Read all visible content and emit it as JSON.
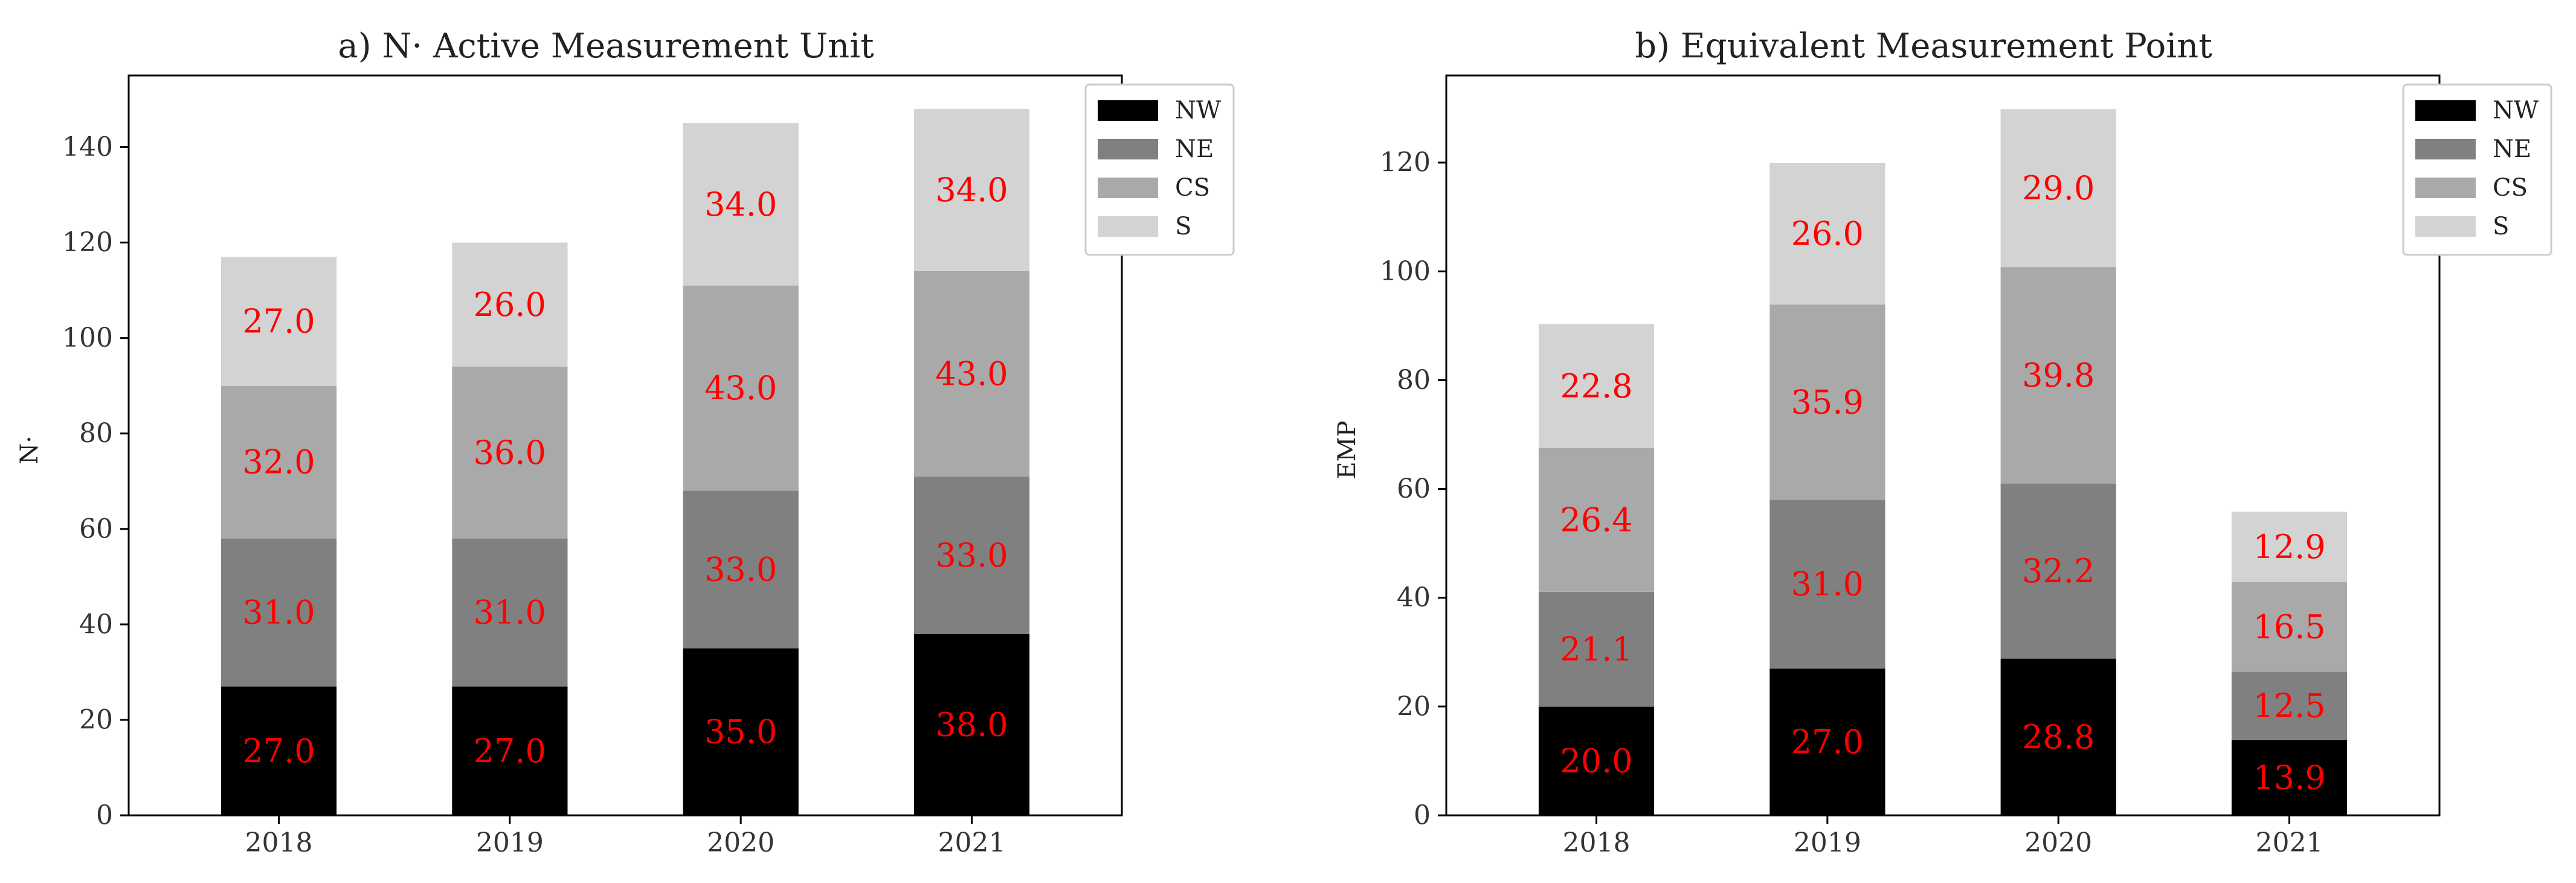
{
  "legend": {
    "placement": "top-right",
    "entries": [
      {
        "label": "NW",
        "color": "#000000"
      },
      {
        "label": "NE",
        "color": "#808080"
      },
      {
        "label": "CS",
        "color": "#a9a9a9"
      },
      {
        "label": "S",
        "color": "#d3d3d3"
      }
    ]
  },
  "chart_data": [
    {
      "type": "bar",
      "stacked": true,
      "title": "a) N· Active Measurement Unit",
      "xlabel": "",
      "ylabel": "N·",
      "categories": [
        "2018",
        "2019",
        "2020",
        "2021"
      ],
      "ylim": [
        0,
        155
      ],
      "yticks": [
        0,
        20,
        40,
        60,
        80,
        100,
        120,
        140
      ],
      "ytick_labels": [
        "0",
        "20",
        "40",
        "60",
        "80",
        "100",
        "120",
        "140"
      ],
      "grid": false,
      "series": [
        {
          "name": "NW",
          "values": [
            27.0,
            27.0,
            35.0,
            38.0
          ],
          "labels": [
            "27.0",
            "27.0",
            "35.0",
            "38.0"
          ]
        },
        {
          "name": "NE",
          "values": [
            31.0,
            31.0,
            33.0,
            33.0
          ],
          "labels": [
            "31.0",
            "31.0",
            "33.0",
            "33.0"
          ]
        },
        {
          "name": "CS",
          "values": [
            32.0,
            36.0,
            43.0,
            43.0
          ],
          "labels": [
            "32.0",
            "36.0",
            "43.0",
            "43.0"
          ]
        },
        {
          "name": "S",
          "values": [
            27.0,
            26.0,
            34.0,
            34.0
          ],
          "labels": [
            "27.0",
            "26.0",
            "34.0",
            "34.0"
          ]
        }
      ]
    },
    {
      "type": "bar",
      "stacked": true,
      "title": "b) Equivalent Measurement Point",
      "xlabel": "",
      "ylabel": "EMP",
      "categories": [
        "2018",
        "2019",
        "2020",
        "2021"
      ],
      "ylim": [
        0,
        136
      ],
      "yticks": [
        0,
        20,
        40,
        60,
        80,
        100,
        120
      ],
      "ytick_labels": [
        "0",
        "20",
        "40",
        "60",
        "80",
        "100",
        "120"
      ],
      "grid": false,
      "series": [
        {
          "name": "NW",
          "values": [
            20.0,
            27.0,
            28.8,
            13.9
          ],
          "labels": [
            "20.0",
            "27.0",
            "28.8",
            "13.9"
          ]
        },
        {
          "name": "NE",
          "values": [
            21.1,
            31.0,
            32.2,
            12.5
          ],
          "labels": [
            "21.1",
            "31.0",
            "32.2",
            "12.5"
          ]
        },
        {
          "name": "CS",
          "values": [
            26.4,
            35.9,
            39.8,
            16.5
          ],
          "labels": [
            "26.4",
            "35.9",
            "39.8",
            "16.5"
          ]
        },
        {
          "name": "S",
          "values": [
            22.8,
            26.0,
            29.0,
            12.9
          ],
          "labels": [
            "22.8",
            "26.0",
            "29.0",
            "12.9"
          ]
        }
      ]
    }
  ]
}
